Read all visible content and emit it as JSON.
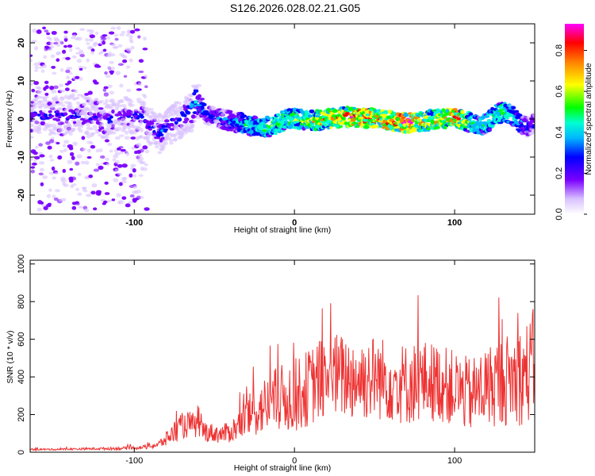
{
  "figure": {
    "title": "S126.2026.028.02.21.G05"
  },
  "chart_data": [
    {
      "type": "heatmap",
      "xlabel": "Height of straight line (km)",
      "ylabel": "Frequency (Hz)",
      "xlim": [
        -165,
        150
      ],
      "ylim": [
        -25,
        25
      ],
      "xticks": [
        -100,
        0,
        100
      ],
      "yticks": [
        -20,
        -10,
        0,
        10,
        20
      ],
      "xtick_labels": [
        "-100",
        "0",
        "100"
      ],
      "ytick_labels": [
        "-20",
        "-10",
        "0",
        "10",
        "20"
      ],
      "colormap": [
        "#ffffff",
        "#d9c2ff",
        "#7a00ff",
        "#0000ff",
        "#00b7ff",
        "#00ffd0",
        "#00ff00",
        "#ffff00",
        "#ff8000",
        "#ff0000",
        "#ff00ff"
      ],
      "colorbar": {
        "label": "Normalized spectral amplitude",
        "range": [
          0,
          0.93
        ],
        "ticks": [
          0.0,
          0.2,
          0.4,
          0.6,
          0.8
        ],
        "tick_labels": [
          "0.0",
          "0.2",
          "0.4",
          "0.6",
          "0.8"
        ]
      },
      "ridge": {
        "x": [
          -165,
          -140,
          -120,
          -100,
          -92,
          -85,
          -75,
          -65,
          -62,
          -55,
          -45,
          -35,
          -25,
          -15,
          -5,
          0,
          10,
          20,
          30,
          40,
          50,
          60,
          70,
          80,
          90,
          100,
          110,
          115,
          120,
          125,
          130,
          135,
          140,
          145,
          150
        ],
        "freq": [
          1,
          1,
          0,
          1,
          -1,
          -4,
          -1,
          2,
          5,
          1,
          0,
          -1,
          -2,
          -2,
          0,
          0,
          -0.5,
          0,
          0.5,
          0.5,
          0,
          -0.5,
          -1,
          -0.5,
          0,
          0.5,
          -1,
          -2,
          -1,
          1,
          2,
          1,
          -1,
          -2,
          -1
        ],
        "amplitude": [
          0.3,
          0.3,
          0.3,
          0.3,
          0.3,
          0.35,
          0.3,
          0.4,
          0.45,
          0.3,
          0.35,
          0.45,
          0.55,
          0.6,
          0.6,
          0.6,
          0.65,
          0.8,
          0.8,
          0.85,
          0.8,
          0.85,
          0.9,
          0.7,
          0.7,
          0.85,
          0.6,
          0.5,
          0.55,
          0.6,
          0.6,
          0.5,
          0.4,
          0.35,
          0.3
        ]
      }
    },
    {
      "type": "line",
      "xlabel": "Height of straight line (km)",
      "ylabel": "SNR (10 * v/v)",
      "xlim": [
        -165,
        150
      ],
      "ylim": [
        0,
        1020
      ],
      "xticks": [
        -100,
        0,
        100
      ],
      "yticks": [
        0,
        200,
        400,
        600,
        800,
        1000
      ],
      "xtick_labels": [
        "-100",
        "0",
        "100"
      ],
      "ytick_labels": [
        "0",
        "200",
        "400",
        "600",
        "800",
        "1000"
      ],
      "color": "#ee3333",
      "series": [
        {
          "x": [
            -165,
            -150,
            -130,
            -110,
            -95,
            -85,
            -80,
            -75,
            -70,
            -65,
            -60,
            -55,
            -50,
            -45,
            -40,
            -35,
            -30,
            -25,
            -20,
            -15,
            -10,
            -5,
            0,
            5,
            10,
            15,
            20,
            25,
            30,
            40,
            50,
            60,
            70,
            80,
            90,
            100,
            110,
            120,
            130,
            140,
            145,
            150
          ],
          "y": [
            15,
            15,
            18,
            20,
            25,
            40,
            70,
            110,
            140,
            150,
            130,
            110,
            100,
            95,
            110,
            140,
            180,
            210,
            240,
            260,
            280,
            290,
            300,
            320,
            350,
            380,
            400,
            410,
            400,
            390,
            400,
            380,
            360,
            380,
            370,
            340,
            300,
            350,
            380,
            400,
            420,
            480
          ],
          "spread": [
            5,
            5,
            6,
            8,
            10,
            20,
            40,
            60,
            70,
            70,
            60,
            55,
            50,
            50,
            60,
            80,
            110,
            130,
            150,
            170,
            180,
            190,
            200,
            200,
            210,
            220,
            230,
            230,
            230,
            230,
            230,
            220,
            220,
            220,
            210,
            200,
            200,
            220,
            240,
            260,
            280,
            300
          ]
        }
      ]
    }
  ]
}
